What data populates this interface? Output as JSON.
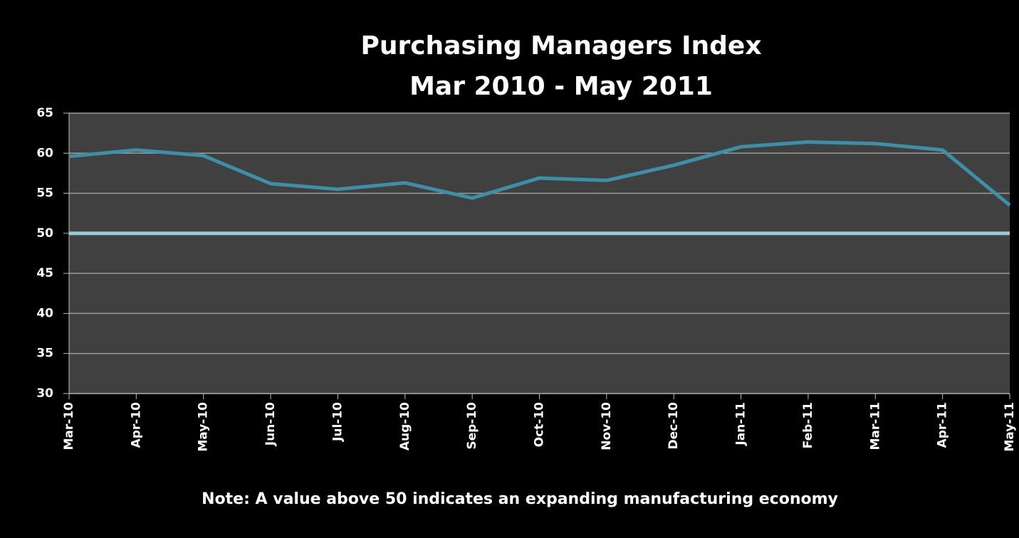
{
  "chart_data": {
    "type": "line",
    "title": "Purchasing Managers Index",
    "subtitle": "Mar 2010 - May 2011",
    "note": "Note:  A value above 50 indicates an expanding manufacturing economy",
    "categories": [
      "Mar-10",
      "Apr-10",
      "May-10",
      "Jun-10",
      "Jul-10",
      "Aug-10",
      "Sep-10",
      "Oct-10",
      "Nov-10",
      "Dec-10",
      "Jan-11",
      "Feb-11",
      "Mar-11",
      "Apr-11",
      "May-11"
    ],
    "values": [
      59.6,
      60.4,
      59.7,
      56.2,
      55.5,
      56.3,
      54.4,
      56.9,
      56.6,
      58.5,
      60.8,
      61.4,
      61.2,
      60.4,
      53.5
    ],
    "color": "#3d8fa8",
    "reference_line": {
      "value": 50,
      "color": "#92cddc"
    },
    "ylim": [
      30,
      65
    ],
    "yticks": [
      30,
      35,
      40,
      45,
      50,
      55,
      60,
      65
    ],
    "grid": true
  }
}
